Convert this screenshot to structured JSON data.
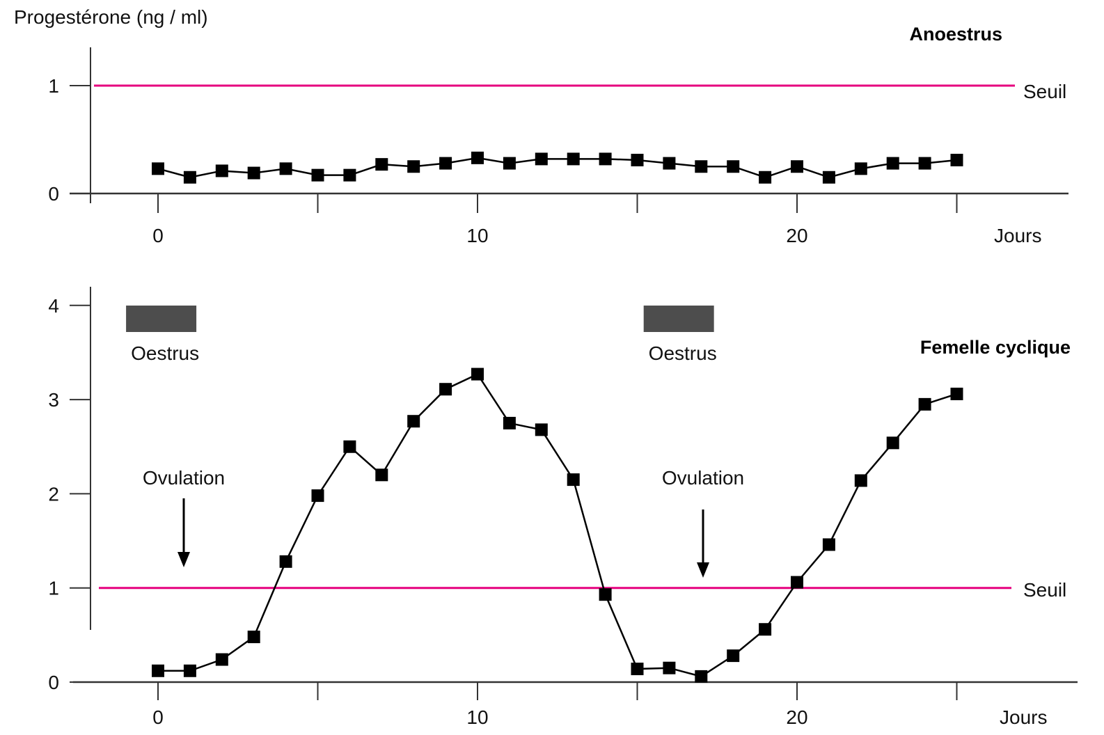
{
  "ylabel": "Progestérone (ng / ml)",
  "colors": {
    "threshold": "#e6007e",
    "series": "#000000",
    "oestrus_bar": "#4d4d4d",
    "axis": "#333333"
  },
  "chart_data": [
    {
      "type": "line",
      "title": "Anoestrus",
      "xlabel": "Jours",
      "ylabel": "Progestérone (ng / ml)",
      "xlim": [
        -2,
        28
      ],
      "ylim": [
        0,
        1.2
      ],
      "x_ticks": [
        0,
        10,
        20
      ],
      "y_ticks": [
        0,
        1
      ],
      "threshold": {
        "value": 1,
        "label": "Seuil"
      },
      "series": [
        {
          "x": [
            0,
            1,
            2,
            3,
            4,
            5,
            6,
            7,
            8,
            9,
            10,
            11,
            12,
            13,
            14,
            15,
            16,
            17,
            18,
            19,
            20,
            21,
            22,
            23,
            24,
            25
          ],
          "y": [
            0.23,
            0.15,
            0.21,
            0.19,
            0.23,
            0.17,
            0.17,
            0.27,
            0.25,
            0.28,
            0.33,
            0.28,
            0.32,
            0.32,
            0.32,
            0.31,
            0.28,
            0.25,
            0.25,
            0.15,
            0.25,
            0.15,
            0.23,
            0.28,
            0.28,
            0.31
          ]
        }
      ]
    },
    {
      "type": "line",
      "title": "Femelle cyclique",
      "xlabel": "Jours",
      "ylabel": "Progestérone (ng / ml)",
      "xlim": [
        -2,
        28
      ],
      "ylim": [
        0,
        4
      ],
      "x_ticks": [
        0,
        10,
        20
      ],
      "y_ticks": [
        0,
        1,
        2,
        3,
        4
      ],
      "threshold": {
        "value": 1,
        "label": "Seuil"
      },
      "series": [
        {
          "x": [
            0,
            1,
            2,
            3,
            4,
            5,
            6,
            7,
            8,
            9,
            10,
            11,
            12,
            13,
            14,
            15,
            16,
            17,
            18,
            19,
            20,
            21,
            22,
            23,
            24,
            25
          ],
          "y": [
            0.12,
            0.12,
            0.24,
            0.48,
            1.28,
            1.98,
            2.5,
            2.2,
            2.77,
            3.11,
            3.27,
            2.75,
            2.68,
            2.15,
            0.93,
            0.14,
            0.15,
            0.06,
            0.28,
            0.56,
            1.06,
            1.46,
            2.14,
            2.54,
            2.95,
            3.06
          ]
        }
      ],
      "oestrus_periods": [
        {
          "start": -1,
          "end": 1.2,
          "label": "Oestrus"
        },
        {
          "start": 15.2,
          "end": 17.4,
          "label": "Oestrus"
        }
      ],
      "annotations": [
        {
          "text": "Ovulation",
          "x": 1
        },
        {
          "text": "Ovulation",
          "x": 17
        }
      ]
    }
  ]
}
